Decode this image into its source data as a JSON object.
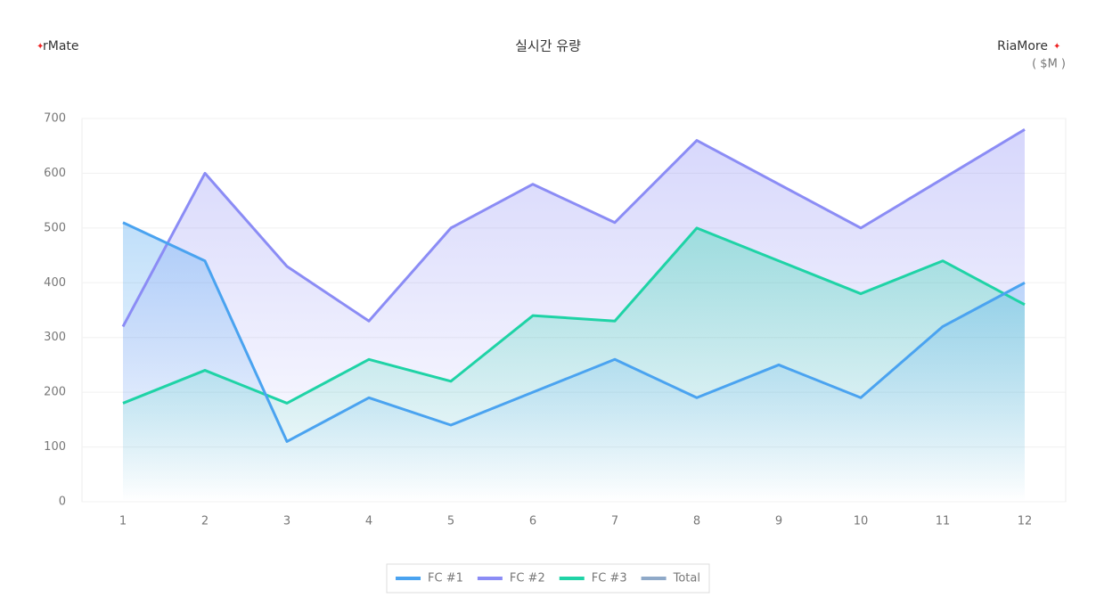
{
  "chart_data": {
    "type": "area",
    "title": "실시간 유량",
    "brand_left": "rMate",
    "brand_right": "RiaMore",
    "unit": "( $M )",
    "categories": [
      "1",
      "2",
      "3",
      "4",
      "5",
      "6",
      "7",
      "8",
      "9",
      "10",
      "11",
      "12"
    ],
    "series": [
      {
        "name": "FC #1",
        "color": "#4aa3f0",
        "values": [
          510,
          440,
          110,
          190,
          140,
          200,
          260,
          190,
          250,
          190,
          320,
          400
        ]
      },
      {
        "name": "FC #2",
        "color": "#8b8cf5",
        "values": [
          320,
          600,
          430,
          330,
          500,
          580,
          510,
          660,
          580,
          500,
          590,
          680
        ]
      },
      {
        "name": "FC #3",
        "color": "#1fd3a6",
        "values": [
          180,
          240,
          180,
          260,
          220,
          340,
          330,
          500,
          440,
          380,
          440,
          360
        ]
      },
      {
        "name": "Total",
        "color": "#8fa9c8",
        "values": [
          null,
          null,
          null,
          null,
          null,
          null,
          null,
          null,
          null,
          null,
          null,
          null
        ]
      }
    ],
    "ylim": [
      0,
      700
    ],
    "yticks": [
      0,
      100,
      200,
      300,
      400,
      500,
      600,
      700
    ],
    "grid": true,
    "legend": "bottom"
  }
}
